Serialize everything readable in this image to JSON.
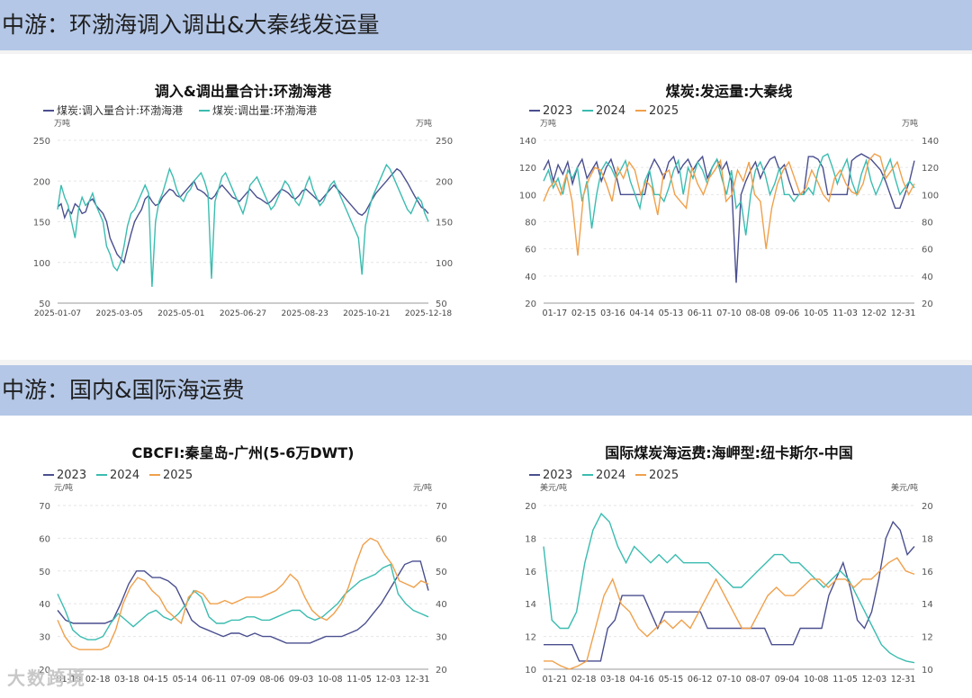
{
  "sections": [
    {
      "title": "中游：环渤海调入调出&大秦线发运量"
    },
    {
      "title": "中游：国内&国际海运费"
    }
  ],
  "watermark": "大数跨境",
  "chart_data": [
    {
      "type": "line",
      "title": "调入&调出量合计:环渤海港",
      "unit_left": "万吨",
      "unit_right": "万吨",
      "ylim": [
        50,
        250
      ],
      "yticks": [
        50,
        100,
        150,
        200,
        250
      ],
      "xticks": [
        "2025-01-07",
        "2025-03-05",
        "2025-05-01",
        "2025-06-27",
        "2025-08-23",
        "2025-10-21",
        "2025-12-18"
      ],
      "legend_position": "top-left",
      "series": [
        {
          "name": "煤炭:调入量合计:环渤海港",
          "color": "#4a4f8f",
          "values": [
            168,
            172,
            155,
            165,
            160,
            172,
            168,
            160,
            162,
            175,
            178,
            170,
            165,
            160,
            150,
            130,
            120,
            110,
            105,
            100,
            118,
            135,
            150,
            158,
            165,
            178,
            182,
            175,
            170,
            172,
            180,
            185,
            190,
            188,
            182,
            180,
            185,
            190,
            195,
            200,
            190,
            188,
            185,
            180,
            178,
            182,
            190,
            195,
            190,
            185,
            180,
            178,
            175,
            180,
            185,
            190,
            185,
            180,
            178,
            175,
            172,
            175,
            180,
            185,
            190,
            188,
            185,
            180,
            178,
            182,
            188,
            190,
            186,
            182,
            178,
            175,
            180,
            185,
            190,
            195,
            190,
            185,
            180,
            175,
            170,
            165,
            160,
            158,
            162,
            170,
            178,
            185,
            190,
            195,
            200,
            205,
            210,
            215,
            212,
            205,
            198,
            190,
            182,
            175,
            168,
            165,
            160
          ]
        },
        {
          "name": "煤炭:调出量:环渤海港",
          "color": "#3bbcb0",
          "values": [
            165,
            195,
            180,
            170,
            150,
            130,
            165,
            180,
            170,
            175,
            185,
            170,
            160,
            150,
            120,
            110,
            95,
            90,
            100,
            120,
            145,
            160,
            165,
            175,
            185,
            195,
            185,
            70,
            150,
            175,
            185,
            200,
            215,
            205,
            190,
            180,
            175,
            185,
            190,
            200,
            205,
            210,
            200,
            185,
            80,
            175,
            190,
            205,
            210,
            200,
            190,
            180,
            170,
            160,
            175,
            195,
            200,
            205,
            195,
            185,
            175,
            165,
            170,
            180,
            190,
            200,
            195,
            185,
            175,
            170,
            180,
            195,
            205,
            190,
            180,
            170,
            175,
            185,
            195,
            200,
            190,
            180,
            170,
            160,
            150,
            140,
            130,
            85,
            145,
            165,
            180,
            190,
            200,
            210,
            220,
            215,
            205,
            195,
            185,
            175,
            165,
            160,
            170,
            180,
            175,
            160,
            150
          ]
        }
      ]
    },
    {
      "type": "line",
      "title": "煤炭:发运量:大秦线",
      "unit_left": "万吨",
      "unit_right": "万吨",
      "ylim": [
        20,
        140
      ],
      "yticks": [
        20,
        40,
        60,
        80,
        100,
        120,
        140
      ],
      "xticks": [
        "01-17",
        "02-15",
        "03-16",
        "04-14",
        "05-13",
        "06-11",
        "07-10",
        "08-08",
        "09-06",
        "10-05",
        "11-03",
        "12-02",
        "12-31"
      ],
      "legend_position": "top-left",
      "series": [
        {
          "name": "2023",
          "color": "#4a4f8f",
          "values": [
            118,
            125,
            110,
            122,
            115,
            124,
            108,
            120,
            126,
            112,
            118,
            124,
            110,
            120,
            126,
            115,
            100,
            100,
            100,
            100,
            100,
            100,
            118,
            126,
            120,
            112,
            124,
            128,
            116,
            122,
            126,
            118,
            124,
            128,
            112,
            120,
            126,
            118,
            124,
            110,
            35,
            100,
            110,
            118,
            124,
            112,
            120,
            126,
            128,
            118,
            122,
            110,
            100,
            100,
            100,
            128,
            128,
            126,
            120,
            100,
            100,
            100,
            100,
            100,
            125,
            128,
            130,
            128,
            126,
            122,
            118,
            110,
            100,
            90,
            90,
            100,
            110,
            125
          ]
        },
        {
          "name": "2024",
          "color": "#3bbcb0",
          "values": [
            110,
            118,
            105,
            112,
            100,
            118,
            112,
            120,
            95,
            110,
            75,
            100,
            118,
            124,
            120,
            112,
            118,
            125,
            110,
            100,
            90,
            110,
            118,
            100,
            100,
            95,
            105,
            118,
            125,
            100,
            120,
            112,
            124,
            118,
            108,
            120,
            126,
            112,
            100,
            118,
            90,
            95,
            70,
            100,
            118,
            124,
            115,
            100,
            108,
            120,
            100,
            100,
            95,
            100,
            100,
            105,
            100,
            118,
            128,
            130,
            120,
            108,
            118,
            126,
            110,
            100,
            115,
            125,
            110,
            100,
            108,
            118,
            126,
            112,
            100,
            105,
            110,
            105
          ]
        },
        {
          "name": "2025",
          "color": "#f0a04b",
          "values": [
            95,
            105,
            110,
            100,
            115,
            95,
            55,
            100,
            112,
            120,
            118,
            108,
            95,
            120,
            112,
            124,
            118,
            100,
            110,
            105,
            85,
            115,
            118,
            100,
            95,
            90,
            120,
            108,
            100,
            112,
            118,
            125,
            95,
            100,
            118,
            110,
            124,
            100,
            95,
            60,
            90,
            108,
            118,
            124,
            112,
            100,
            105,
            118,
            110,
            100,
            95,
            112,
            118,
            108,
            102,
            100,
            108,
            125,
            130,
            128,
            112,
            118,
            124,
            110,
            100,
            108
          ]
        }
      ]
    },
    {
      "type": "line",
      "title": "CBCFI:秦皇岛-广州(5-6万DWT)",
      "unit_left": "元/吨",
      "unit_right": "元/吨",
      "ylim": [
        20,
        70
      ],
      "yticks": [
        20,
        30,
        40,
        50,
        60,
        70
      ],
      "xticks": [
        "01-19",
        "02-18",
        "03-18",
        "04-15",
        "05-14",
        "06-11",
        "07-09",
        "08-06",
        "09-03",
        "10-08",
        "11-05",
        "12-03",
        "12-31"
      ],
      "legend_position": "top-left",
      "series": [
        {
          "name": "2023",
          "color": "#4a4f8f",
          "values": [
            38,
            35,
            34,
            34,
            34,
            34,
            34,
            35,
            40,
            46,
            50,
            50,
            48,
            48,
            47,
            45,
            40,
            35,
            33,
            32,
            31,
            30,
            31,
            31,
            30,
            31,
            30,
            30,
            29,
            28,
            28,
            28,
            28,
            29,
            30,
            30,
            30,
            31,
            32,
            34,
            37,
            40,
            44,
            48,
            52,
            53,
            53,
            44
          ]
        },
        {
          "name": "2024",
          "color": "#3bbcb0",
          "values": [
            43,
            38,
            32,
            30,
            29,
            29,
            30,
            34,
            37,
            35,
            33,
            35,
            37,
            38,
            36,
            35,
            37,
            40,
            44,
            42,
            36,
            34,
            34,
            35,
            35,
            36,
            36,
            35,
            35,
            36,
            37,
            38,
            38,
            36,
            35,
            36,
            38,
            40,
            43,
            45,
            47,
            48,
            49,
            51,
            52,
            43,
            40,
            38,
            37,
            36
          ]
        },
        {
          "name": "2025",
          "color": "#f0a04b",
          "values": [
            35,
            30,
            27,
            26,
            26,
            26,
            26,
            27,
            32,
            40,
            45,
            48,
            47,
            44,
            42,
            38,
            36,
            34,
            42,
            44,
            43,
            40,
            40,
            41,
            40,
            41,
            42,
            42,
            42,
            43,
            44,
            46,
            49,
            47,
            42,
            38,
            36,
            35,
            37,
            40,
            45,
            52,
            58,
            60,
            59,
            55,
            52,
            47,
            46,
            45,
            47,
            46
          ]
        }
      ]
    },
    {
      "type": "line",
      "title": "国际煤炭海运费:海岬型:纽卡斯尔-中国",
      "unit_left": "美元/吨",
      "unit_right": "美元/吨",
      "ylim": [
        10,
        20
      ],
      "yticks": [
        10,
        12,
        14,
        16,
        18,
        20
      ],
      "xticks": [
        "01-21",
        "02-18",
        "03-18",
        "04-16",
        "05-15",
        "06-12",
        "07-10",
        "08-07",
        "09-04",
        "10-08",
        "11-05",
        "12-03",
        "12-31"
      ],
      "legend_position": "top-left",
      "series": [
        {
          "name": "2023",
          "color": "#4a4f8f",
          "values": [
            11.5,
            11.5,
            11.5,
            11.5,
            11.5,
            10.5,
            10.5,
            10.5,
            10.5,
            12.5,
            13.0,
            14.5,
            14.5,
            14.5,
            14.5,
            13.5,
            12.5,
            13.5,
            13.5,
            13.5,
            13.5,
            13.5,
            13.5,
            12.5,
            12.5,
            12.5,
            12.5,
            12.5,
            12.5,
            12.5,
            12.5,
            12.5,
            11.5,
            11.5,
            11.5,
            11.5,
            12.5,
            12.5,
            12.5,
            12.5,
            14.5,
            15.5,
            16.5,
            15.0,
            13.0,
            12.5,
            13.5,
            15.5,
            18.0,
            19.0,
            18.5,
            17.0,
            17.5
          ]
        },
        {
          "name": "2024",
          "color": "#3bbcb0",
          "values": [
            17.5,
            13.0,
            12.5,
            12.5,
            13.5,
            16.5,
            18.5,
            19.5,
            19.0,
            17.5,
            16.5,
            17.5,
            17.0,
            16.5,
            17.0,
            16.5,
            17.0,
            16.5,
            16.5,
            16.5,
            16.5,
            16.0,
            15.5,
            15.0,
            15.0,
            15.5,
            16.0,
            16.5,
            17.0,
            17.0,
            16.5,
            16.5,
            16.0,
            15.5,
            15.0,
            15.5,
            16.0,
            15.5,
            14.5,
            13.5,
            12.5,
            11.5,
            11.0,
            10.7,
            10.5,
            10.4
          ]
        },
        {
          "name": "2025",
          "color": "#f0a04b",
          "values": [
            10.5,
            10.5,
            10.2,
            10.0,
            10.2,
            10.5,
            12.5,
            14.5,
            15.5,
            14.0,
            13.5,
            12.5,
            12.0,
            12.5,
            13.0,
            12.5,
            13.0,
            12.5,
            13.5,
            14.5,
            15.5,
            14.5,
            13.5,
            12.5,
            12.5,
            13.5,
            14.5,
            15.0,
            14.5,
            14.5,
            15.0,
            15.5,
            15.5,
            15.0,
            15.5,
            15.5,
            15.0,
            15.5,
            15.5,
            16.0,
            16.5,
            16.8,
            16.0,
            15.8
          ]
        }
      ]
    }
  ]
}
